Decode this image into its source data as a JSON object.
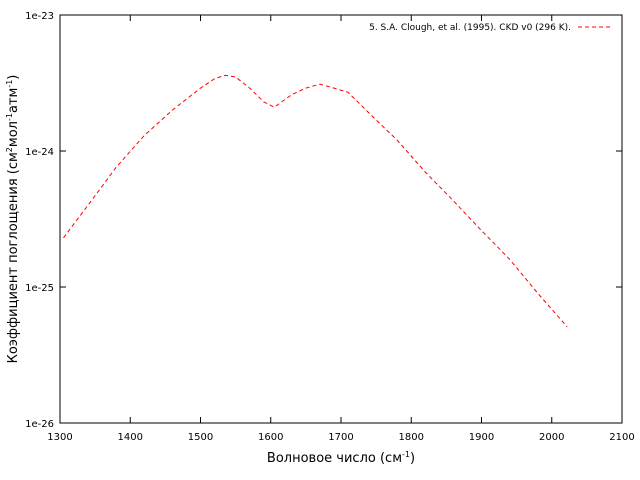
{
  "chart_data": {
    "type": "line",
    "xlabel_main": "Волновое число (см",
    "xlabel_sup": "-1",
    "xlabel_end": ")",
    "ylabel_parts": [
      "Коэффициент поглощения (см",
      "2",
      "мол",
      "-1",
      "атм",
      "-1",
      ")"
    ],
    "xlim": [
      1300,
      2100
    ],
    "ylim": [
      1e-26,
      1e-23
    ],
    "yscale": "log",
    "grid": false,
    "legend_position": "top-right",
    "x_ticks": [
      1300,
      1400,
      1500,
      1600,
      1700,
      1800,
      1900,
      2000,
      2100
    ],
    "x_tick_labels": [
      "1300",
      "1400",
      "1500",
      "1600",
      "1700",
      "1800",
      "1900",
      "2000",
      "2100"
    ],
    "y_ticks": [
      1e-26,
      1e-25,
      1e-24,
      1e-23
    ],
    "y_tick_labels": [
      "1e-26",
      "1e-25",
      "1e-24",
      "1e-23"
    ],
    "series": [
      {
        "name": "5. S.A. Clough, et al. (1995). CKD v0 (296 K).",
        "color": "#ff0000",
        "dash": "dashed",
        "x": [
          1305,
          1340,
          1380,
          1420,
          1460,
          1500,
          1520,
          1535,
          1550,
          1570,
          1590,
          1605,
          1630,
          1650,
          1670,
          1690,
          1710,
          1740,
          1780,
          1820,
          1860,
          1900,
          1940,
          1980,
          2022
        ],
        "y": [
          2.3e-25,
          4e-25,
          7.6e-25,
          1.3e-24,
          2e-24,
          2.9e-24,
          3.4e-24,
          3.6e-24,
          3.5e-24,
          2.9e-24,
          2.3e-24,
          2.1e-24,
          2.6e-24,
          2.9e-24,
          3.1e-24,
          2.9e-24,
          2.7e-24,
          1.9e-24,
          1.2e-24,
          7e-25,
          4.3e-25,
          2.6e-25,
          1.6e-25,
          9e-26,
          5.1e-26
        ]
      }
    ]
  }
}
